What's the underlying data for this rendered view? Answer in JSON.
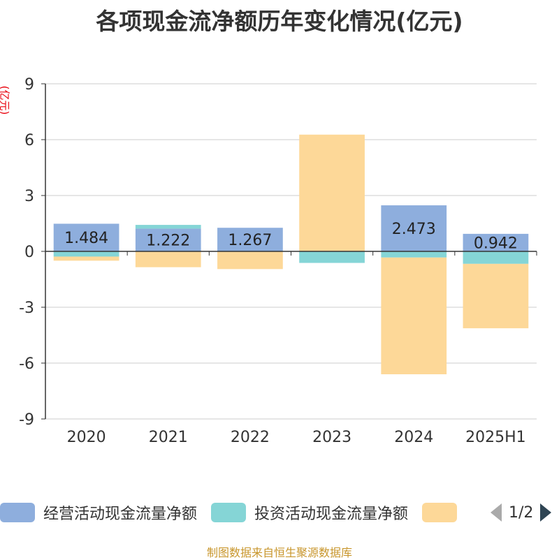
{
  "title": "各项现金流净额历年变化情况(亿元)",
  "unit_label": "(亿元)",
  "footer": "制图数据来自恒生聚源数据库",
  "legend": {
    "items": [
      {
        "label": "经营活动现金流量净额",
        "color": "#8eaedd"
      },
      {
        "label": "投资活动现金流量净额",
        "color": "#85d5d6"
      },
      {
        "label": "",
        "color": "#fdd898"
      }
    ],
    "page_indicator": "1/2"
  },
  "chart_data": {
    "type": "bar",
    "stacked": true,
    "categories": [
      "2020",
      "2021",
      "2022",
      "2023",
      "2024",
      "2025H1"
    ],
    "series": [
      {
        "name": "经营活动现金流量净额",
        "color": "#8eaedd",
        "values": [
          1.484,
          1.222,
          1.267,
          0,
          2.473,
          0.942
        ]
      },
      {
        "name": "投资活动现金流量净额",
        "color": "#85d5d6",
        "values": [
          -0.28,
          0.2,
          0,
          -0.62,
          -0.33,
          -0.67
        ]
      },
      {
        "name": "",
        "color": "#fdd898",
        "values": [
          -0.22,
          -0.85,
          -0.95,
          6.27,
          -6.27,
          -3.46
        ]
      }
    ],
    "data_labels": [
      "1.484",
      "1.222",
      "1.267",
      "",
      "2.473",
      "0.942"
    ],
    "y_ticks": [
      9,
      6,
      3,
      0,
      -3,
      -6,
      -9
    ],
    "ylim": [
      -9,
      9
    ],
    "grid": true
  }
}
